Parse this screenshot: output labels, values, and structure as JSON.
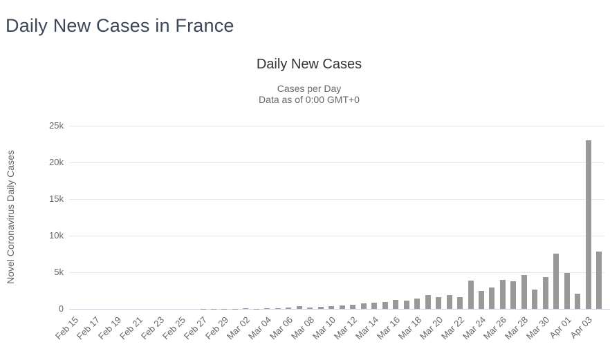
{
  "page": {
    "title": "Daily New Cases in France"
  },
  "colors": {
    "page_title": "#3c4757",
    "chart_title": "#333333",
    "subtitle": "#666666",
    "tick_label": "#666666",
    "axis_title": "#666666",
    "bar": "#999999",
    "gridline": "#e6e6e6",
    "axis_line": "#ccd6eb",
    "background": "#ffffff"
  },
  "chart_data": {
    "type": "bar",
    "title": "Daily New Cases",
    "subtitle": [
      "Cases per Day",
      "Data as of 0:00 GMT+0"
    ],
    "xlabel": "",
    "ylabel": "Novel Coronavirus Daily Cases",
    "ylim": [
      0,
      25000
    ],
    "ytick_values": [
      0,
      5000,
      10000,
      15000,
      20000,
      25000
    ],
    "ytick_labels": [
      "0",
      "5k",
      "10k",
      "15k",
      "20k",
      "25k"
    ],
    "grid": true,
    "legend": "none",
    "x_label_every": 2,
    "x_label_rotation": -45,
    "categories": [
      "Feb 15",
      "Feb 16",
      "Feb 17",
      "Feb 18",
      "Feb 19",
      "Feb 20",
      "Feb 21",
      "Feb 22",
      "Feb 23",
      "Feb 24",
      "Feb 25",
      "Feb 26",
      "Feb 27",
      "Feb 28",
      "Feb 29",
      "Mar 01",
      "Mar 02",
      "Mar 03",
      "Mar 04",
      "Mar 05",
      "Mar 06",
      "Mar 07",
      "Mar 08",
      "Mar 09",
      "Mar 10",
      "Mar 11",
      "Mar 12",
      "Mar 13",
      "Mar 14",
      "Mar 15",
      "Mar 16",
      "Mar 17",
      "Mar 18",
      "Mar 19",
      "Mar 20",
      "Mar 21",
      "Mar 22",
      "Mar 23",
      "Mar 24",
      "Mar 25",
      "Mar 26",
      "Mar 27",
      "Mar 28",
      "Mar 29",
      "Mar 30",
      "Mar 31",
      "Apr 01",
      "Apr 02",
      "Apr 03",
      "Apr 04"
    ],
    "values": [
      0,
      0,
      0,
      0,
      0,
      0,
      0,
      0,
      0,
      0,
      2,
      3,
      20,
      19,
      43,
      30,
      61,
      21,
      73,
      138,
      190,
      336,
      177,
      286,
      372,
      497,
      595,
      785,
      838,
      924,
      1210,
      1097,
      1404,
      1861,
      1617,
      1847,
      1559,
      3838,
      2444,
      2931,
      3922,
      3809,
      4611,
      2599,
      4376,
      7578,
      4861,
      2116,
      23060,
      7788
    ]
  }
}
